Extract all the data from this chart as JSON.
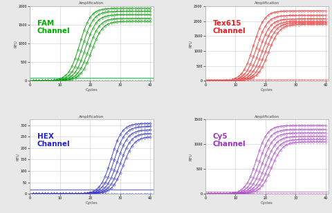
{
  "panels": [
    {
      "label": "FAM\nChannel",
      "label_color": "#00aa00",
      "curve_color": "#009900",
      "flat_line_color": "#00bb44",
      "flat_dot_color": "#009900",
      "ylim": [
        0,
        2000
      ],
      "yticks": [
        0,
        500,
        1000,
        1500,
        2000
      ],
      "plateau_values": [
        1950,
        1870,
        1780,
        1680,
        1600
      ],
      "ct_base": 18,
      "ct_offsets": [
        -1.5,
        -0.5,
        0.5,
        1.5,
        2.5
      ],
      "flat_level": 70,
      "n_flat_curves": 3
    },
    {
      "label": "Tex615\nChannel",
      "label_color": "#dd2222",
      "curve_color": "#ee3333",
      "flat_line_color": "#ff8888",
      "flat_dot_color": "#ee3333",
      "ylim": [
        0,
        2500
      ],
      "yticks": [
        0,
        500,
        1000,
        1500,
        2000,
        2500
      ],
      "plateau_values": [
        2350,
        2200,
        2080,
        2000,
        1950,
        1900
      ],
      "ct_base": 18,
      "ct_offsets": [
        -2,
        -1,
        0,
        1,
        2,
        3
      ],
      "flat_level": 50,
      "n_flat_curves": 4
    },
    {
      "label": "HEX\nChannel",
      "label_color": "#2222cc",
      "curve_color": "#3333cc",
      "flat_line_color": "#5555cc",
      "flat_dot_color": "#3333cc",
      "ylim": [
        0,
        325
      ],
      "yticks": [
        0,
        50,
        100,
        150,
        200,
        250,
        300
      ],
      "plateau_values": [
        308,
        295,
        280,
        265,
        250
      ],
      "ct_base": 28,
      "ct_offsets": [
        -1,
        0,
        1,
        2,
        3
      ],
      "flat_level": 18,
      "n_flat_curves": 1
    },
    {
      "label": "Cy5\nChannel",
      "label_color": "#9933bb",
      "curve_color": "#aa44cc",
      "flat_line_color": "#cc77cc",
      "flat_dot_color": "#aa44cc",
      "ylim": [
        0,
        1500
      ],
      "yticks": [
        0,
        500,
        1000,
        1500
      ],
      "plateau_values": [
        1380,
        1300,
        1230,
        1160,
        1100,
        1050
      ],
      "ct_base": 18,
      "ct_offsets": [
        -1,
        0,
        1,
        2,
        3,
        4
      ],
      "flat_level": 40,
      "n_flat_curves": 2
    }
  ],
  "background_fig": "#e8e8e8",
  "background_ax": "#ffffff",
  "grid_color": "#cccccc",
  "title": "Amplification",
  "xlabel": "Cycles",
  "ylabel": "RFU"
}
